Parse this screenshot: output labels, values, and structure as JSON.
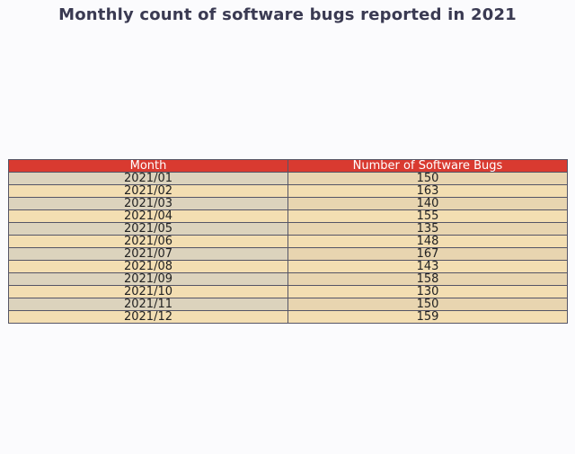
{
  "chart_data": {
    "type": "table",
    "title": "Monthly count of software bugs reported in 2021",
    "columns": [
      "Month",
      "Number of Software Bugs"
    ],
    "rows": [
      [
        "2021/01",
        150
      ],
      [
        "2021/02",
        163
      ],
      [
        "2021/03",
        140
      ],
      [
        "2021/04",
        155
      ],
      [
        "2021/05",
        135
      ],
      [
        "2021/06",
        148
      ],
      [
        "2021/07",
        167
      ],
      [
        "2021/08",
        143
      ],
      [
        "2021/09",
        158
      ],
      [
        "2021/10",
        130
      ],
      [
        "2021/11",
        150
      ],
      [
        "2021/12",
        159
      ]
    ],
    "colors": {
      "header_background": "#d93a30",
      "header_text": "#ffffff",
      "row_background": "#f3deb2"
    }
  }
}
